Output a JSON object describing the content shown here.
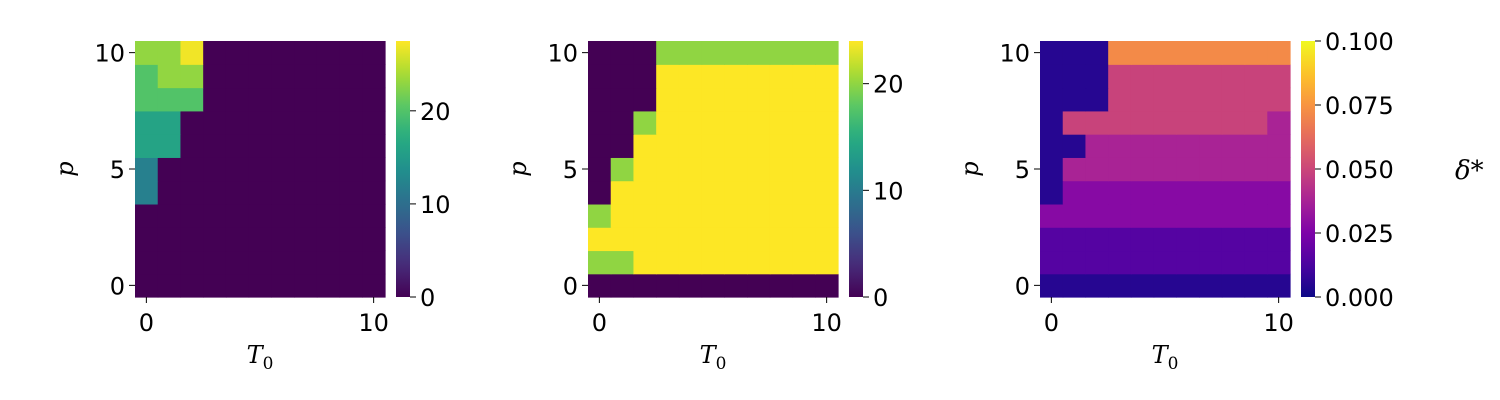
{
  "chart_data": [
    {
      "type": "heatmap",
      "xlabel": "T",
      "xlabel_sub": "0",
      "ylabel": "p",
      "x": [
        0,
        1,
        2,
        3,
        4,
        5,
        6,
        7,
        8,
        9,
        10
      ],
      "y": [
        0,
        1,
        2,
        3,
        4,
        5,
        6,
        7,
        8,
        9,
        10
      ],
      "xticks": [
        0,
        10
      ],
      "yticks": [
        0,
        5,
        10
      ],
      "colormap": "viridis",
      "vmin": 0,
      "vmax": 27.5,
      "colorbar_ticks": [
        0,
        10,
        20
      ],
      "colorbar_label": "",
      "z": [
        [
          0,
          0,
          0,
          0,
          0,
          0,
          0,
          0,
          0,
          0,
          0
        ],
        [
          0,
          0,
          0,
          0,
          0,
          0,
          0,
          0,
          0,
          0,
          0
        ],
        [
          0,
          0,
          0,
          0,
          0,
          0,
          0,
          0,
          0,
          0,
          0
        ],
        [
          0,
          0,
          0,
          0,
          0,
          0,
          0,
          0,
          0,
          0,
          0
        ],
        [
          12,
          0,
          0,
          0,
          0,
          0,
          0,
          0,
          0,
          0,
          0
        ],
        [
          12,
          0,
          0,
          0,
          0,
          0,
          0,
          0,
          0,
          0,
          0
        ],
        [
          16,
          16,
          0,
          0,
          0,
          0,
          0,
          0,
          0,
          0,
          0
        ],
        [
          16,
          16,
          0,
          0,
          0,
          0,
          0,
          0,
          0,
          0,
          0
        ],
        [
          20,
          20,
          20,
          0,
          0,
          0,
          0,
          0,
          0,
          0,
          0
        ],
        [
          20,
          23,
          23,
          0,
          0,
          0,
          0,
          0,
          0,
          0,
          0
        ],
        [
          23,
          23,
          27,
          0,
          0,
          0,
          0,
          0,
          0,
          0,
          0
        ]
      ]
    },
    {
      "type": "heatmap",
      "xlabel": "T",
      "xlabel_sub": "0",
      "ylabel": "p",
      "x": [
        0,
        1,
        2,
        3,
        4,
        5,
        6,
        7,
        8,
        9,
        10
      ],
      "y": [
        0,
        1,
        2,
        3,
        4,
        5,
        6,
        7,
        8,
        9,
        10
      ],
      "xticks": [
        0,
        10
      ],
      "yticks": [
        0,
        5,
        10
      ],
      "colormap": "viridis",
      "vmin": 0,
      "vmax": 24,
      "colorbar_ticks": [
        0,
        10,
        20
      ],
      "colorbar_label": "",
      "z": [
        [
          0,
          0,
          0,
          0,
          0,
          0,
          0,
          0,
          0,
          0,
          0
        ],
        [
          20,
          20,
          24,
          24,
          24,
          24,
          24,
          24,
          24,
          24,
          24
        ],
        [
          24,
          24,
          24,
          24,
          24,
          24,
          24,
          24,
          24,
          24,
          24
        ],
        [
          20,
          24,
          24,
          24,
          24,
          24,
          24,
          24,
          24,
          24,
          24
        ],
        [
          0,
          24,
          24,
          24,
          24,
          24,
          24,
          24,
          24,
          24,
          24
        ],
        [
          0,
          20,
          24,
          24,
          24,
          24,
          24,
          24,
          24,
          24,
          24
        ],
        [
          0,
          0,
          24,
          24,
          24,
          24,
          24,
          24,
          24,
          24,
          24
        ],
        [
          0,
          0,
          20,
          24,
          24,
          24,
          24,
          24,
          24,
          24,
          24
        ],
        [
          0,
          0,
          0,
          24,
          24,
          24,
          24,
          24,
          24,
          24,
          24
        ],
        [
          0,
          0,
          0,
          24,
          24,
          24,
          24,
          24,
          24,
          24,
          24
        ],
        [
          0,
          0,
          0,
          20,
          20,
          20,
          20,
          20,
          20,
          20,
          20
        ]
      ]
    },
    {
      "type": "heatmap",
      "xlabel": "T",
      "xlabel_sub": "0",
      "ylabel": "p",
      "x": [
        0,
        1,
        2,
        3,
        4,
        5,
        6,
        7,
        8,
        9,
        10
      ],
      "y": [
        0,
        1,
        2,
        3,
        4,
        5,
        6,
        7,
        8,
        9,
        10
      ],
      "xticks": [
        0,
        10
      ],
      "yticks": [
        0,
        5,
        10
      ],
      "colormap": "plasma",
      "vmin": 0,
      "vmax": 0.1,
      "colorbar_ticks": [
        "0.000",
        "0.025",
        "0.050",
        "0.075",
        "0.100"
      ],
      "colorbar_label": "δ*",
      "z": [
        [
          0.005,
          0.005,
          0.005,
          0.005,
          0.005,
          0.005,
          0.005,
          0.005,
          0.005,
          0.005,
          0.005
        ],
        [
          0.015,
          0.015,
          0.015,
          0.015,
          0.015,
          0.015,
          0.015,
          0.015,
          0.015,
          0.015,
          0.015
        ],
        [
          0.015,
          0.015,
          0.015,
          0.015,
          0.015,
          0.015,
          0.015,
          0.015,
          0.015,
          0.015,
          0.015
        ],
        [
          0.028,
          0.028,
          0.028,
          0.028,
          0.028,
          0.028,
          0.028,
          0.028,
          0.028,
          0.028,
          0.028
        ],
        [
          0.005,
          0.028,
          0.028,
          0.028,
          0.028,
          0.028,
          0.028,
          0.028,
          0.028,
          0.028,
          0.028
        ],
        [
          0.005,
          0.038,
          0.038,
          0.038,
          0.038,
          0.038,
          0.038,
          0.038,
          0.038,
          0.038,
          0.038
        ],
        [
          0.005,
          0.005,
          0.038,
          0.038,
          0.038,
          0.038,
          0.038,
          0.038,
          0.038,
          0.038,
          0.038
        ],
        [
          0.005,
          0.049,
          0.049,
          0.049,
          0.049,
          0.049,
          0.049,
          0.049,
          0.049,
          0.049,
          0.038
        ],
        [
          0.005,
          0.005,
          0.005,
          0.049,
          0.049,
          0.049,
          0.049,
          0.049,
          0.049,
          0.049,
          0.049
        ],
        [
          0.005,
          0.005,
          0.005,
          0.049,
          0.049,
          0.049,
          0.049,
          0.049,
          0.049,
          0.049,
          0.049
        ],
        [
          0.005,
          0.005,
          0.005,
          0.072,
          0.072,
          0.072,
          0.072,
          0.072,
          0.072,
          0.072,
          0.072
        ]
      ]
    }
  ]
}
